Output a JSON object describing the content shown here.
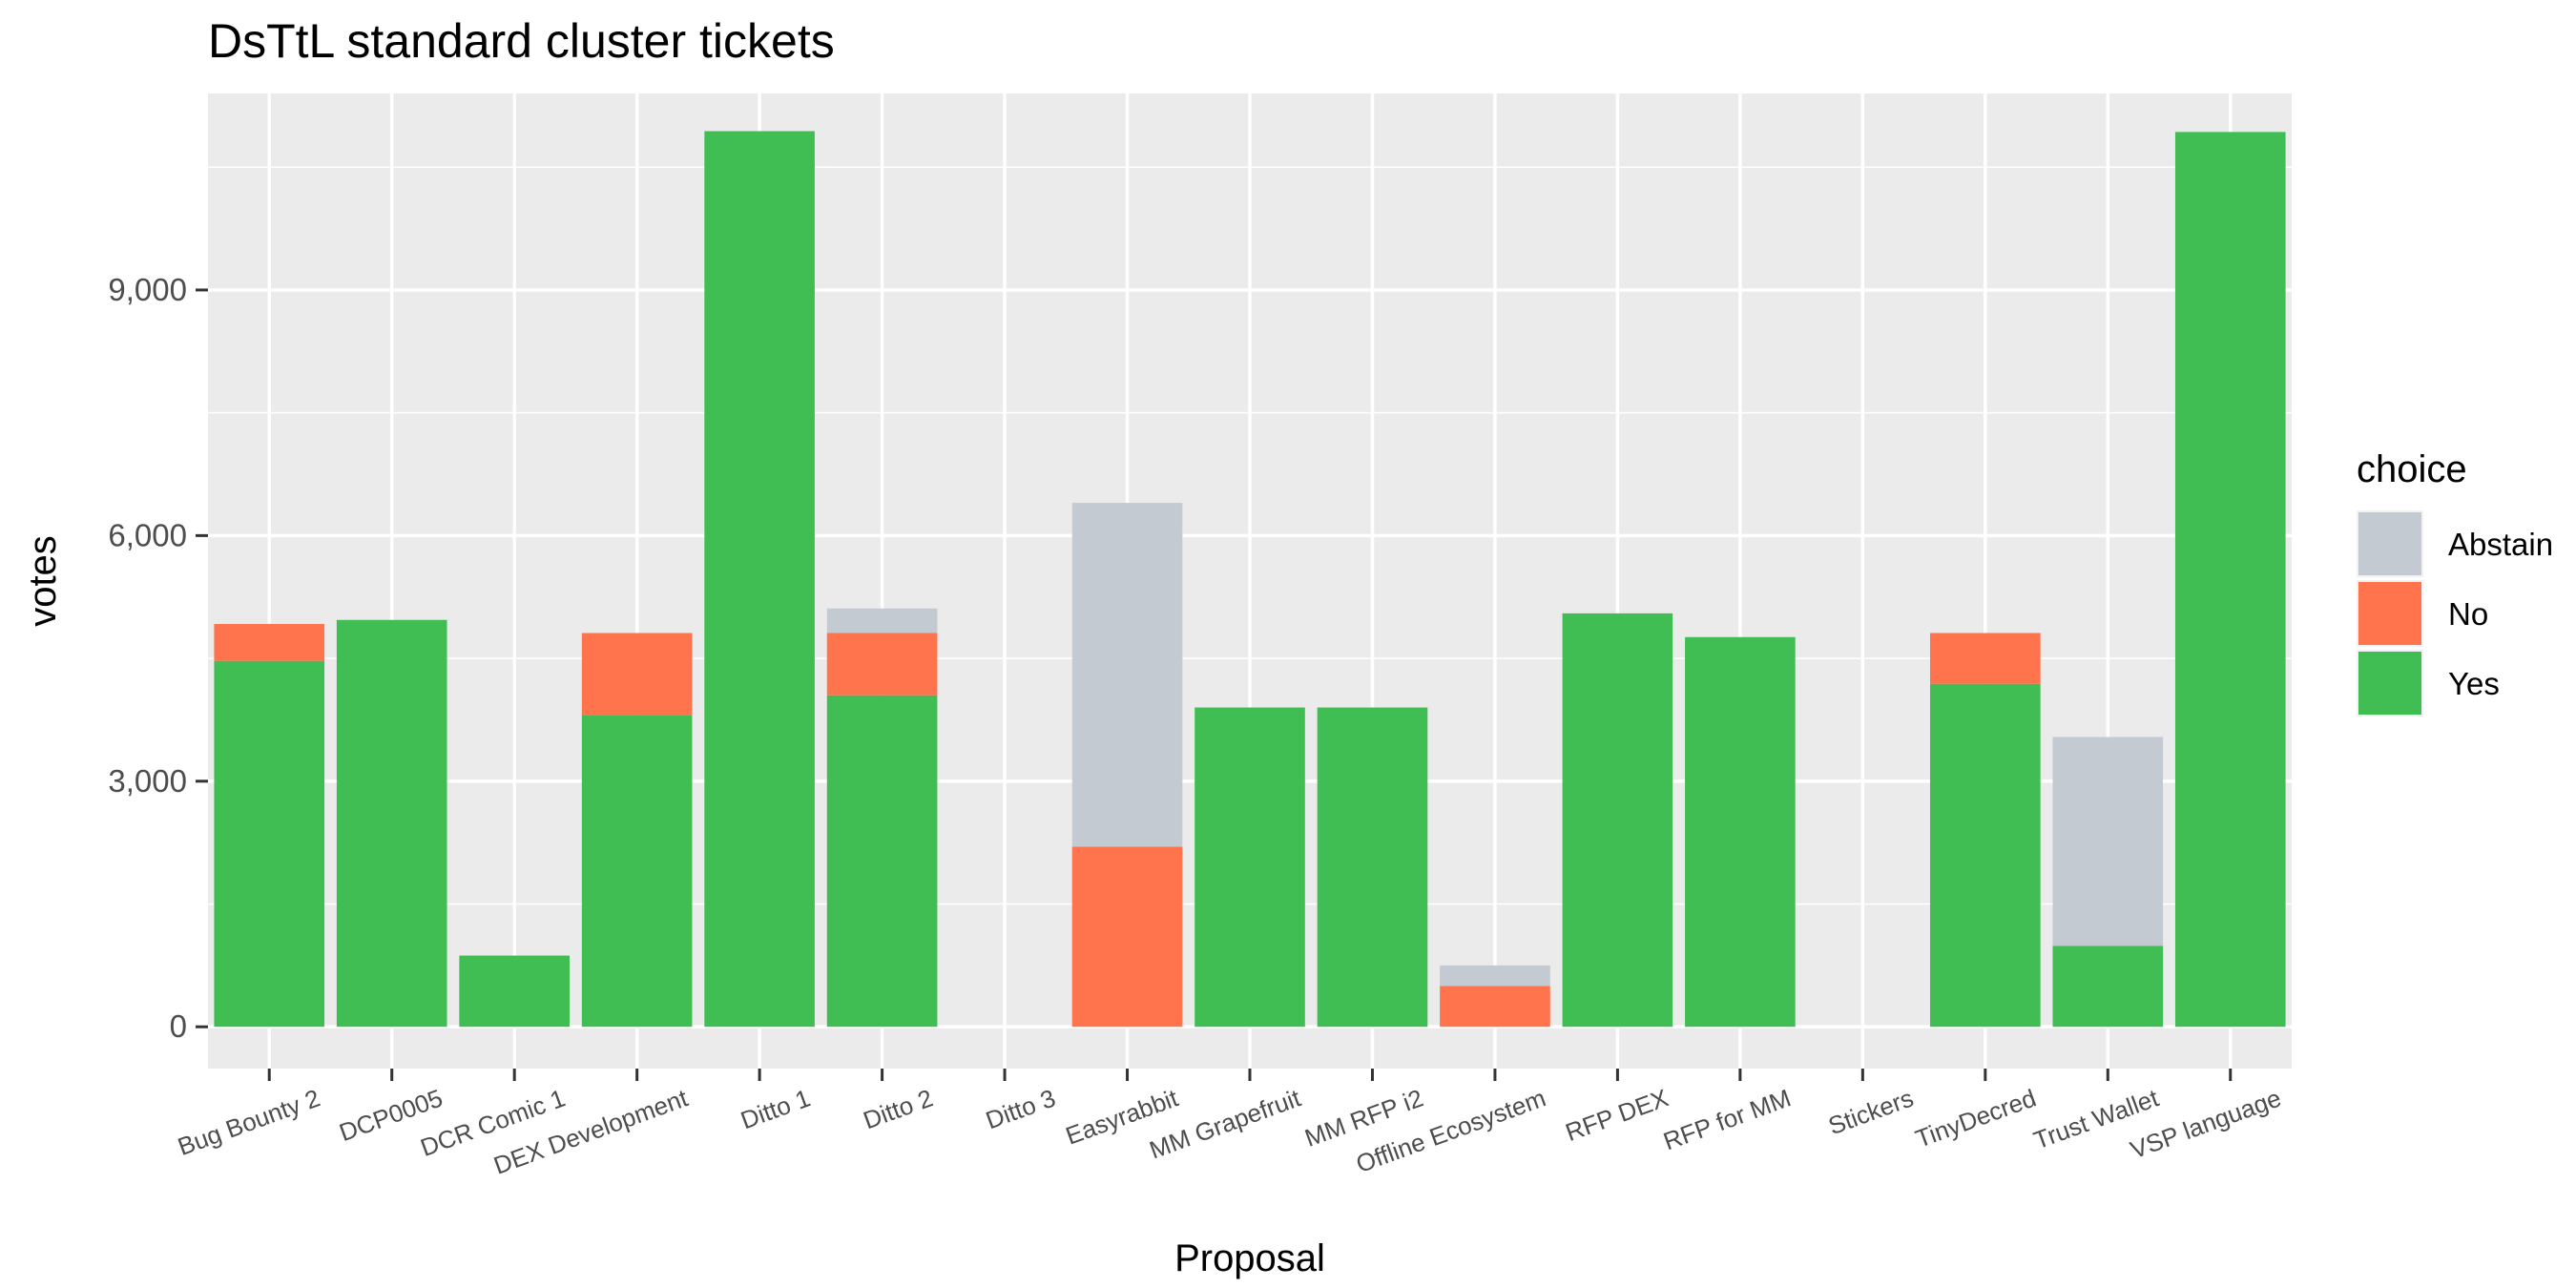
{
  "chart_data": {
    "type": "bar",
    "stacked": true,
    "title": "DsTtL standard cluster tickets",
    "xlabel": "Proposal",
    "ylabel": "votes",
    "ylim": [
      -510,
      11400
    ],
    "yticks": [
      0,
      3000,
      6000,
      9000
    ],
    "ytick_labels": [
      "0",
      "3,000",
      "6,000",
      "9,000"
    ],
    "grid": true,
    "legend_title": "choice",
    "legend_position": "right",
    "categories": [
      "Bug Bounty 2",
      "DCP0005",
      "DCR Comic 1",
      "DEX Development",
      "Ditto 1",
      "Ditto 2",
      "Ditto 3",
      "Easyrabbit",
      "MM Grapefruit",
      "MM RFP i2",
      "Offline Ecosystem",
      "RFP DEX",
      "RFP for MM",
      "Stickers",
      "TinyDecred",
      "Trust Wallet",
      "VSP language"
    ],
    "series": [
      {
        "name": "Abstain",
        "color": "#c4cad1",
        "values": [
          0,
          0,
          0,
          0,
          0,
          300,
          0,
          4200,
          0,
          0,
          250,
          0,
          0,
          0,
          0,
          2550,
          0
        ]
      },
      {
        "name": "No",
        "color": "#ff734d",
        "values": [
          450,
          0,
          0,
          1000,
          0,
          760,
          0,
          2200,
          0,
          0,
          500,
          0,
          0,
          0,
          620,
          0,
          0
        ]
      },
      {
        "name": "Yes",
        "color": "#41be53",
        "values": [
          4470,
          4970,
          870,
          3810,
          10940,
          4050,
          0,
          0,
          3900,
          3900,
          0,
          5050,
          4760,
          0,
          4190,
          990,
          10930
        ]
      }
    ]
  }
}
